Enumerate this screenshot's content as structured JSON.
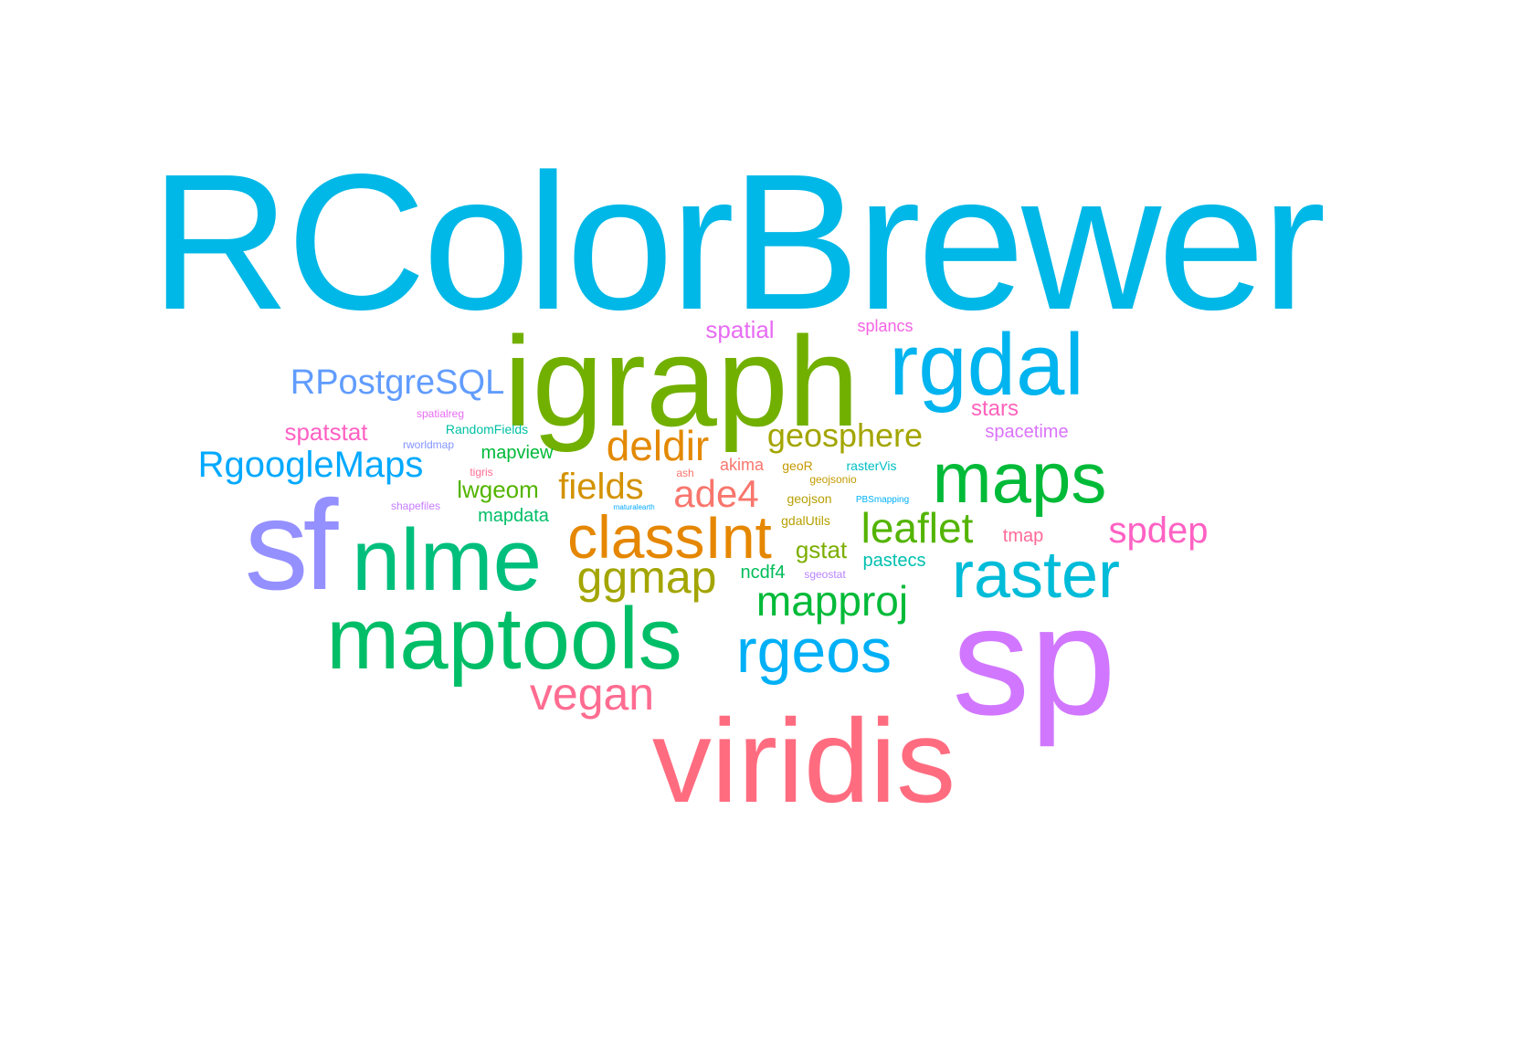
{
  "words": [
    {
      "text": "RColorBrewer",
      "color": "#00B8E7"
    },
    {
      "text": "igraph",
      "color": "#72B000"
    },
    {
      "text": "rgdal",
      "color": "#00B4EF"
    },
    {
      "text": "spatial",
      "color": "#E76BF3"
    },
    {
      "text": "splancs",
      "color": "#F564E3"
    },
    {
      "text": "RPostgreSQL",
      "color": "#619CFF"
    },
    {
      "text": "stars",
      "color": "#FF62BC"
    },
    {
      "text": "spatialreg",
      "color": "#E76BF3"
    },
    {
      "text": "RandomFields",
      "color": "#00C1A3"
    },
    {
      "text": "spatstat",
      "color": "#FF61C3"
    },
    {
      "text": "rworldmap",
      "color": "#8494FF"
    },
    {
      "text": "geosphere",
      "color": "#A3A500"
    },
    {
      "text": "spacetime",
      "color": "#DB72FB"
    },
    {
      "text": "deldir",
      "color": "#E38900"
    },
    {
      "text": "mapview",
      "color": "#00BA38"
    },
    {
      "text": "RgoogleMaps",
      "color": "#00A9FF"
    },
    {
      "text": "maps",
      "color": "#00BA38"
    },
    {
      "text": "tigris",
      "color": "#FF6C91"
    },
    {
      "text": "akima",
      "color": "#F8766D"
    },
    {
      "text": "geoR",
      "color": "#C49A00"
    },
    {
      "text": "rasterVis",
      "color": "#00BFC4"
    },
    {
      "text": "ash",
      "color": "#F8766D"
    },
    {
      "text": "geojsonio",
      "color": "#C49A00"
    },
    {
      "text": "fields",
      "color": "#D39200"
    },
    {
      "text": "lwgeom",
      "color": "#53B400"
    },
    {
      "text": "ade4",
      "color": "#F8766D"
    },
    {
      "text": "shapefiles",
      "color": "#C77CFF"
    },
    {
      "text": "rnaturalearth",
      "color": "#00A9FF"
    },
    {
      "text": "geojson",
      "color": "#B79F00"
    },
    {
      "text": "PBSmapping",
      "color": "#00B0F6"
    },
    {
      "text": "mapdata",
      "color": "#00BE67"
    },
    {
      "text": "gdalUtils",
      "color": "#B79F00"
    },
    {
      "text": "leaflet",
      "color": "#53B400"
    },
    {
      "text": "sf",
      "color": "#9590FF"
    },
    {
      "text": "classInt",
      "color": "#E58700"
    },
    {
      "text": "nlme",
      "color": "#00BF7D"
    },
    {
      "text": "spdep",
      "color": "#FF61C3"
    },
    {
      "text": "tmap",
      "color": "#FF6A98"
    },
    {
      "text": "gstat",
      "color": "#7CAE00"
    },
    {
      "text": "pastecs",
      "color": "#00C0AF"
    },
    {
      "text": "raster",
      "color": "#00BCD8"
    },
    {
      "text": "ggmap",
      "color": "#A3A500"
    },
    {
      "text": "ncdf4",
      "color": "#00BC59"
    },
    {
      "text": "sgeostat",
      "color": "#B983FF"
    },
    {
      "text": "mapproj",
      "color": "#00BA38"
    },
    {
      "text": "maptools",
      "color": "#00BE67"
    },
    {
      "text": "rgeos",
      "color": "#00B0F6"
    },
    {
      "text": "sp",
      "color": "#D177FF"
    },
    {
      "text": "vegan",
      "color": "#FF6C91"
    },
    {
      "text": "viridis",
      "color": "#FF6C80"
    }
  ]
}
